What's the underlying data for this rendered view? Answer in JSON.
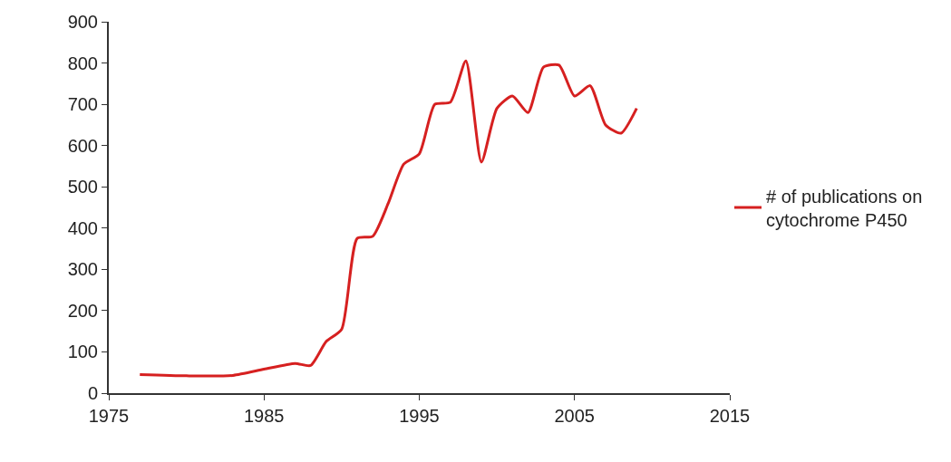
{
  "chart_data": {
    "type": "line",
    "x": [
      1977,
      1980,
      1983,
      1985,
      1987,
      1988,
      1989,
      1990,
      1991,
      1992,
      1993,
      1994,
      1995,
      1996,
      1997,
      1998,
      1999,
      2000,
      2001,
      2002,
      2003,
      2004,
      2005,
      2006,
      2007,
      2008,
      2009
    ],
    "series": [
      {
        "name": "# of publications on cytochrome P450",
        "color": "#d62020",
        "values": [
          45,
          42,
          43,
          58,
          72,
          67,
          125,
          155,
          375,
          380,
          460,
          555,
          580,
          700,
          705,
          805,
          560,
          690,
          720,
          680,
          790,
          795,
          720,
          745,
          650,
          630,
          690
        ]
      }
    ],
    "xlim": [
      1975,
      2015
    ],
    "xticks": [
      1975,
      1985,
      1995,
      2005,
      2015
    ],
    "ylim": [
      0,
      900
    ],
    "yticks": [
      0,
      100,
      200,
      300,
      400,
      500,
      600,
      700,
      800,
      900
    ],
    "legend": "right",
    "marker": "none",
    "line_style": "solid"
  }
}
